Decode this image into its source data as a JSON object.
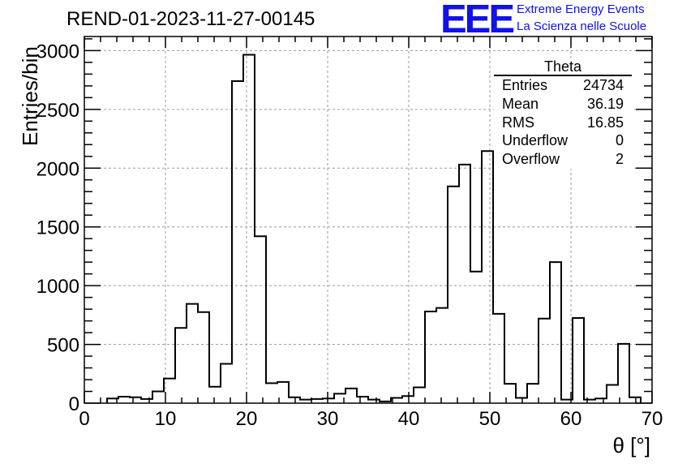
{
  "title": "REND-01-2023-11-27-00145",
  "logo": {
    "text": "EEE",
    "line1": "Extreme Energy Events",
    "line2": "La Scienza nelle Scuole",
    "color": "#1212e8"
  },
  "stats_box": {
    "name": "Theta",
    "rows": [
      {
        "label": "Entries",
        "value": "24734"
      },
      {
        "label": "Mean",
        "value": "36.19"
      },
      {
        "label": "RMS",
        "value": "16.85"
      },
      {
        "label": "Underflow",
        "value": "0"
      },
      {
        "label": "Overflow",
        "value": "2"
      }
    ]
  },
  "chart_data": {
    "type": "bar",
    "style": "step-histogram",
    "title": "REND-01-2023-11-27-00145",
    "xlabel": "θ [°]",
    "ylabel": "Entries/bin",
    "xlim": [
      0,
      70
    ],
    "ylim": [
      0,
      3120
    ],
    "grid": true,
    "bin_width": 1.4,
    "xticks": [
      0,
      10,
      20,
      30,
      40,
      50,
      60,
      70
    ],
    "yticks": [
      0,
      500,
      1000,
      1500,
      2000,
      2500,
      3000
    ],
    "bin_edges_start": 2.8,
    "values": [
      40,
      55,
      50,
      35,
      100,
      210,
      640,
      845,
      775,
      140,
      335,
      2740,
      2965,
      1420,
      170,
      180,
      50,
      30,
      35,
      40,
      80,
      125,
      55,
      30,
      15,
      45,
      60,
      135,
      780,
      810,
      1845,
      2030,
      1120,
      2145,
      760,
      165,
      45,
      165,
      720,
      1200,
      30,
      725,
      30,
      40,
      155,
      505,
      50
    ]
  }
}
